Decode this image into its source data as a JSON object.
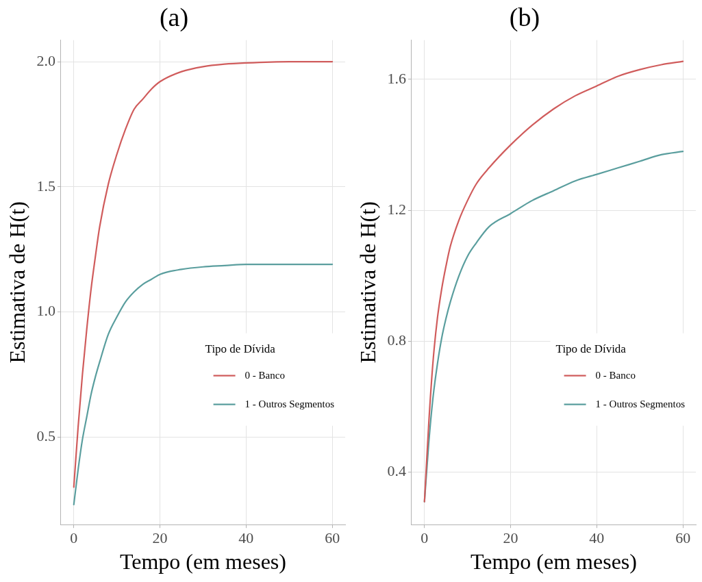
{
  "chart_data": [
    {
      "type": "line",
      "title": "(a)",
      "xlabel": "Tempo (em meses)",
      "ylabel": "Estimativa de H(t)",
      "legend_title": "Tipo de Dívida",
      "legend": "right",
      "grid": true,
      "marker": "none",
      "line_style": "solid",
      "xlim": [
        -3,
        63
      ],
      "xticks": [
        0,
        20,
        40,
        60
      ],
      "ylim": [
        0.15,
        2.086
      ],
      "yticks": [
        0.5,
        {
          "value": 1,
          "label": "1.0"
        },
        1.5,
        {
          "value": 2,
          "label": "2.0"
        }
      ],
      "x": [
        0,
        1,
        2,
        3,
        4,
        5,
        6,
        8,
        10,
        12,
        14,
        16,
        18,
        20,
        25,
        30,
        35,
        40,
        50,
        60
      ],
      "series": [
        {
          "name": "0 - Banco",
          "color": "#d05c5c",
          "values": [
            0.3,
            0.54,
            0.75,
            0.93,
            1.09,
            1.22,
            1.34,
            1.51,
            1.63,
            1.73,
            1.81,
            1.85,
            1.89,
            1.92,
            1.96,
            1.98,
            1.99,
            1.995,
            2.0,
            2.0
          ]
        },
        {
          "name": "1 - Outros Segmentos",
          "color": "#5a9e9e",
          "values": [
            0.23,
            0.37,
            0.49,
            0.58,
            0.67,
            0.74,
            0.8,
            0.91,
            0.98,
            1.04,
            1.08,
            1.11,
            1.13,
            1.15,
            1.17,
            1.18,
            1.185,
            1.19,
            1.19,
            1.19
          ]
        }
      ]
    },
    {
      "type": "line",
      "title": "(b)",
      "xlabel": "Tempo (em meses)",
      "ylabel": "Estimativa de H(t)",
      "legend_title": "Tipo de Dívida",
      "legend": "right",
      "grid": true,
      "marker": "none",
      "line_style": "solid",
      "xlim": [
        -3,
        63
      ],
      "xticks": [
        0,
        20,
        40,
        60
      ],
      "ylim": [
        0.24,
        1.72
      ],
      "yticks": [
        0.4,
        0.8,
        1.2,
        1.6
      ],
      "x": [
        0,
        1,
        2,
        3,
        4,
        5,
        6,
        8,
        10,
        12,
        15,
        20,
        25,
        30,
        35,
        40,
        45,
        50,
        55,
        60
      ],
      "series": [
        {
          "name": "0 - Banco",
          "color": "#d05c5c",
          "values": [
            0.31,
            0.55,
            0.74,
            0.87,
            0.96,
            1.03,
            1.09,
            1.17,
            1.23,
            1.28,
            1.33,
            1.4,
            1.46,
            1.51,
            1.55,
            1.58,
            1.61,
            1.63,
            1.645,
            1.655
          ]
        },
        {
          "name": "1 - Outros Segmentos",
          "color": "#5a9e9e",
          "values": [
            0.31,
            0.49,
            0.63,
            0.73,
            0.81,
            0.87,
            0.92,
            1.0,
            1.06,
            1.1,
            1.15,
            1.19,
            1.23,
            1.26,
            1.29,
            1.31,
            1.33,
            1.35,
            1.37,
            1.38
          ]
        }
      ]
    }
  ]
}
